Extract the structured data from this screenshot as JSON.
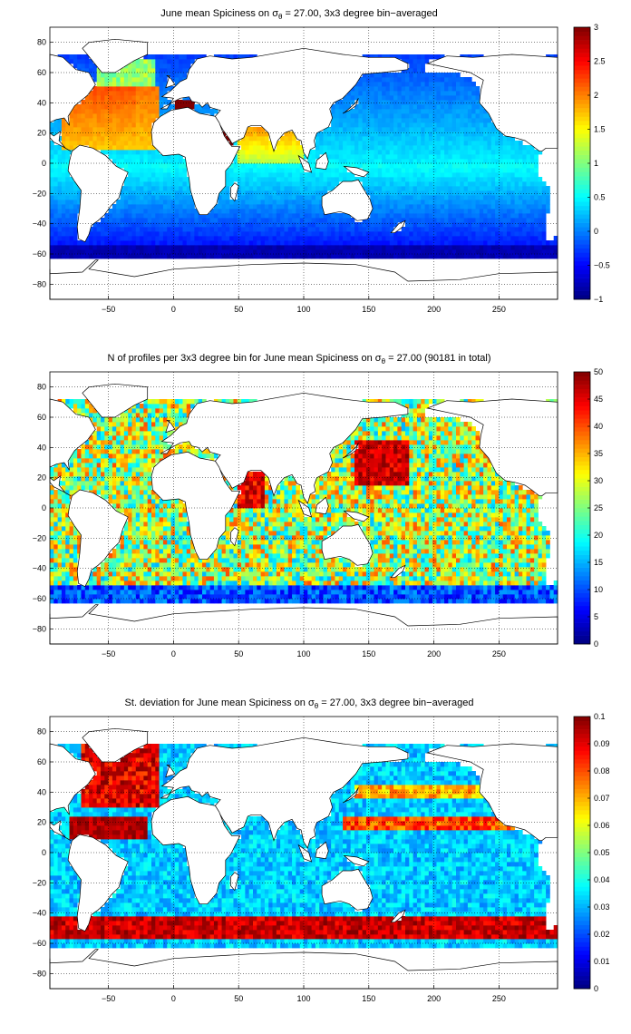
{
  "chart_data": [
    {
      "type": "heatmap",
      "title": "June mean Spiciness on σ",
      "title_sub": "θ",
      "title_suffix": " = 27.00, 3x3 degree bin−averaged",
      "field": "spice",
      "xlim": [
        -95,
        295
      ],
      "ylim": [
        -90,
        90
      ],
      "xticks": [
        "−50",
        "0",
        "50",
        "100",
        "150",
        "200",
        "250"
      ],
      "xtick_values": [
        -50,
        0,
        50,
        100,
        150,
        200,
        250
      ],
      "yticks": [
        "80",
        "60",
        "40",
        "20",
        "0",
        "−20",
        "−40",
        "−60",
        "−80"
      ],
      "ytick_values": [
        80,
        60,
        40,
        20,
        0,
        -20,
        -40,
        -60,
        -80
      ],
      "colorbar": {
        "range": [
          -1,
          3
        ],
        "ticks": [
          "3",
          "2.5",
          "2",
          "1.5",
          "1",
          "0.5",
          "0",
          "−0.5",
          "−1"
        ],
        "tick_values": [
          3,
          2.5,
          2,
          1.5,
          1,
          0.5,
          0,
          -0.5,
          -1
        ]
      },
      "colormap": "jet",
      "grid": true
    },
    {
      "type": "heatmap",
      "title": "N of profiles per 3x3 degree bin for June mean Spiciness on σ",
      "title_sub": "θ",
      "title_suffix": " = 27.00 (90181 in total)",
      "field": "count",
      "xlim": [
        -95,
        295
      ],
      "ylim": [
        -90,
        90
      ],
      "xticks": [
        "−50",
        "0",
        "50",
        "100",
        "150",
        "200",
        "250"
      ],
      "xtick_values": [
        -50,
        0,
        50,
        100,
        150,
        200,
        250
      ],
      "yticks": [
        "80",
        "60",
        "40",
        "20",
        "0",
        "−20",
        "−40",
        "−60",
        "−80"
      ],
      "ytick_values": [
        80,
        60,
        40,
        20,
        0,
        -20,
        -40,
        -60,
        -80
      ],
      "colorbar": {
        "range": [
          0,
          50
        ],
        "ticks": [
          "50",
          "45",
          "40",
          "35",
          "30",
          "25",
          "20",
          "15",
          "10",
          "5",
          "0"
        ],
        "tick_values": [
          50,
          45,
          40,
          35,
          30,
          25,
          20,
          15,
          10,
          5,
          0
        ]
      },
      "colormap": "jet",
      "grid": true
    },
    {
      "type": "heatmap",
      "title": "St. deviation for June mean Spiciness on σ",
      "title_sub": "θ",
      "title_suffix": " = 27.00, 3x3 degree bin−averaged",
      "field": "std",
      "xlim": [
        -95,
        295
      ],
      "ylim": [
        -90,
        90
      ],
      "xticks": [
        "−50",
        "0",
        "50",
        "100",
        "150",
        "200",
        "250"
      ],
      "xtick_values": [
        -50,
        0,
        50,
        100,
        150,
        200,
        250
      ],
      "yticks": [
        "80",
        "60",
        "40",
        "20",
        "0",
        "−20",
        "−40",
        "−60",
        "−80"
      ],
      "ytick_values": [
        80,
        60,
        40,
        20,
        0,
        -20,
        -40,
        -60,
        -80
      ],
      "colorbar": {
        "range": [
          0,
          0.1
        ],
        "ticks": [
          "0.1",
          "0.09",
          "0.08",
          "0.07",
          "0.06",
          "0.05",
          "0.04",
          "0.03",
          "0.02",
          "0.01",
          "0"
        ],
        "tick_values": [
          0.1,
          0.09,
          0.08,
          0.07,
          0.06,
          0.05,
          0.04,
          0.03,
          0.02,
          0.01,
          0
        ]
      },
      "colormap": "jet",
      "grid": true
    }
  ]
}
